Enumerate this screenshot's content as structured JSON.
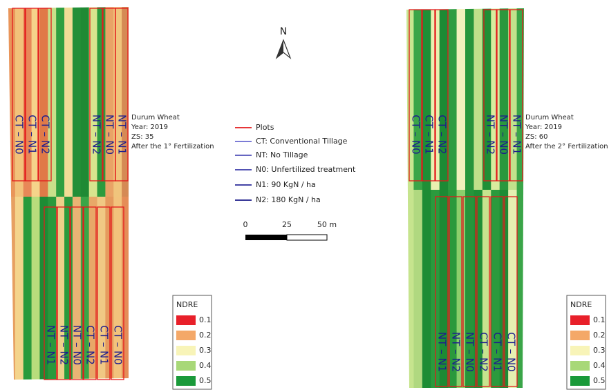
{
  "north_arrow": {
    "label": "N"
  },
  "legend": {
    "items": [
      {
        "label": "Plots",
        "color": "#e31a1c"
      },
      {
        "label": "CT: Conventional Tillage",
        "color": "#6a6ad0"
      },
      {
        "label": "NT: No Tillage",
        "color": "#5050b8"
      },
      {
        "label": "N0: Unfertilized treatment",
        "color": "#3a3aa8"
      },
      {
        "label": "N1: 90 KgN / ha",
        "color": "#2a2a98"
      },
      {
        "label": "N2: 180 KgN / ha",
        "color": "#1a1a88"
      }
    ]
  },
  "scale_bar": {
    "labels": [
      "0",
      "25",
      "50 m"
    ]
  },
  "panels": [
    {
      "annotation": [
        "Durum Wheat",
        "Year: 2019",
        "ZS: 35",
        "After the 1° Fertilization"
      ],
      "plots_top": [
        "CT – N0",
        "CT – N1",
        "CT – N2",
        "NT – N2",
        "NT – N0",
        "NT – N1"
      ],
      "plots_bottom": [
        "NT – N1",
        "NT – N2",
        "NT – N0",
        "CT – N2",
        "CT – N1",
        "CT – N0"
      ],
      "ndre_legend": {
        "title": "NDRE",
        "classes": [
          {
            "label": "0.1",
            "color": "#e8202a"
          },
          {
            "label": "0.2",
            "color": "#f4a868"
          },
          {
            "label": "0.3",
            "color": "#f8f4b8"
          },
          {
            "label": "0.4",
            "color": "#a8d878"
          },
          {
            "label": "0.5",
            "color": "#1a9a3a"
          }
        ]
      }
    },
    {
      "annotation": [
        "Durum Wheat",
        "Year: 2019",
        "ZS: 60",
        "After the 2° Fertilization"
      ],
      "plots_top": [
        "CT – N0",
        "CT – N1",
        "CT – N2",
        "NT – N2",
        "NT – N0",
        "NT – N1"
      ],
      "plots_bottom": [
        "NT – N1",
        "NT – N2",
        "NT – N0",
        "CT – N2",
        "CT – N1",
        "CT – N0"
      ],
      "ndre_legend": {
        "title": "NDRE",
        "classes": [
          {
            "label": "0.1",
            "color": "#e8202a"
          },
          {
            "label": "0.2",
            "color": "#f4a868"
          },
          {
            "label": "0.3",
            "color": "#f8f4b8"
          },
          {
            "label": "0.4",
            "color": "#a8d878"
          },
          {
            "label": "0.5",
            "color": "#1a9a3a"
          }
        ]
      }
    }
  ]
}
